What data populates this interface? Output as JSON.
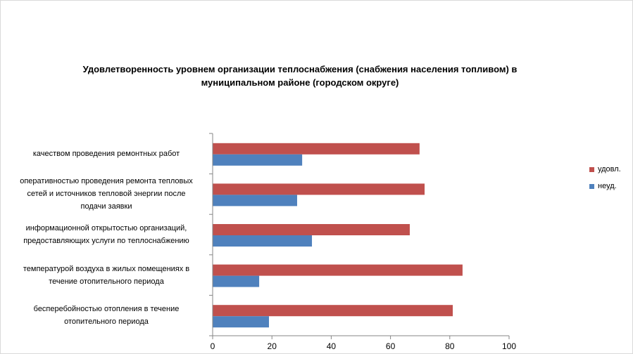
{
  "chart_data": {
    "type": "bar",
    "orientation": "horizontal",
    "title": "Удовлетворенность уровнем организации теплоснабжения (снабжения населения топливом) в муниципальном районе (городском округе)",
    "title_lines": [
      "Удовлетворенность уровнем организации теплоснабжения (снабжения населения топливом) в",
      "муниципальном районе (городском округе)"
    ],
    "categories": [
      {
        "name": "бесперебойностью отопления в течение отопительного периода",
        "lines": [
          "бесперебойностью  отопления в течение",
          "отопительного периода"
        ]
      },
      {
        "name": "температурой воздуха в жилых помещениях в течение отопительного периода",
        "lines": [
          "температурой воздуха в жилых помещениях  в",
          "течение  отопительного периода"
        ]
      },
      {
        "name": "информационной открытостью организаций, предоставляющих услуги по теплоснабжению",
        "lines": [
          "информационной открытостью организаций,",
          "предоставляющих услуги по теплоснабжению"
        ]
      },
      {
        "name": "оперативностью проведения ремонта тепловых сетей и источников тепловой энергии после подачи заявки",
        "lines": [
          "оперативностью  проведения  ремонта тепловых",
          "сетей и источников тепловой энергии после",
          "подачи заявки"
        ]
      },
      {
        "name": "качеством проведения ремонтных работ",
        "lines": [
          "качеством  проведения  ремонтных работ"
        ]
      }
    ],
    "series": [
      {
        "name": "неуд.",
        "color": "#4f81bd",
        "values": [
          19,
          15.7,
          33.5,
          28.5,
          30.2
        ]
      },
      {
        "name": "удовл.",
        "color": "#c0504d",
        "values": [
          81,
          84.3,
          66.5,
          71.5,
          69.8
        ]
      }
    ],
    "legend": {
      "position": "right",
      "entries": [
        "удовл.",
        "неуд."
      ]
    },
    "xlim": [
      0,
      100
    ],
    "xticks": [
      "0",
      "20",
      "40",
      "60",
      "80",
      "100"
    ],
    "grid": false
  }
}
